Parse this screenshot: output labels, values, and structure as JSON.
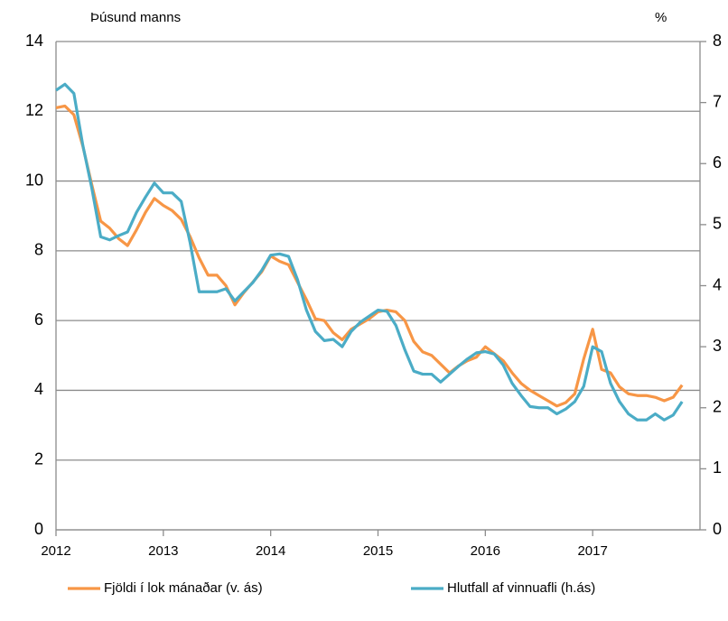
{
  "chart_data": {
    "type": "line",
    "y_label": "Þúsund manns",
    "y2_label": "%",
    "categories": [
      "2012",
      null,
      null,
      null,
      null,
      null,
      null,
      null,
      null,
      null,
      null,
      null,
      "2013",
      null,
      null,
      null,
      null,
      null,
      null,
      null,
      null,
      null,
      null,
      null,
      "2014",
      null,
      null,
      null,
      null,
      null,
      null,
      null,
      null,
      null,
      null,
      null,
      "2015",
      null,
      null,
      null,
      null,
      null,
      null,
      null,
      null,
      null,
      null,
      null,
      "2016",
      null,
      null,
      null,
      null,
      null,
      null,
      null,
      null,
      null,
      null,
      null,
      "2017",
      null,
      null,
      null,
      null,
      null,
      null,
      null,
      null,
      null,
      null
    ],
    "series": [
      {
        "name": "Fjöldi í lok mánaðar (v. ás)",
        "color": "#f79646",
        "axis": "y",
        "values": [
          12.1,
          12.15,
          11.9,
          11.0,
          9.9,
          8.85,
          8.65,
          8.35,
          8.15,
          8.6,
          9.1,
          9.5,
          9.3,
          9.15,
          8.9,
          8.4,
          7.8,
          7.3,
          7.3,
          7.0,
          6.45,
          6.8,
          7.1,
          7.4,
          7.85,
          7.7,
          7.6,
          7.1,
          6.6,
          6.05,
          6.0,
          5.65,
          5.45,
          5.75,
          5.9,
          6.05,
          6.25,
          6.3,
          6.25,
          6.0,
          5.4,
          5.1,
          5.0,
          4.75,
          4.5,
          4.7,
          4.85,
          4.95,
          5.25,
          5.05,
          4.85,
          4.5,
          4.2,
          4.0,
          3.85,
          3.7,
          3.55,
          3.65,
          3.9,
          4.9,
          5.75,
          4.6,
          4.5,
          4.1,
          3.9,
          3.85,
          3.85,
          3.8,
          3.7,
          3.8,
          4.15
        ]
      },
      {
        "name": "Hlutfall af vinnuafli (h.ás)",
        "color": "#4bacc6",
        "axis": "y2",
        "values": [
          7.2,
          7.3,
          7.15,
          6.3,
          5.6,
          4.8,
          4.75,
          4.82,
          4.88,
          5.2,
          5.45,
          5.68,
          5.52,
          5.52,
          5.38,
          4.7,
          3.9,
          3.9,
          3.9,
          3.95,
          3.75,
          3.9,
          4.05,
          4.25,
          4.5,
          4.52,
          4.48,
          4.1,
          3.6,
          3.25,
          3.1,
          3.12,
          3.0,
          3.25,
          3.4,
          3.5,
          3.6,
          3.58,
          3.35,
          2.95,
          2.6,
          2.55,
          2.55,
          2.42,
          2.55,
          2.68,
          2.8,
          2.9,
          2.92,
          2.88,
          2.7,
          2.4,
          2.2,
          2.02,
          2.0,
          2.0,
          1.9,
          1.98,
          2.1,
          2.35,
          3.0,
          2.92,
          2.4,
          2.1,
          1.9,
          1.8,
          1.8,
          1.9,
          1.8,
          1.88,
          2.1
        ]
      }
    ],
    "ylim": [
      0,
      14
    ],
    "yticks": [
      0,
      2,
      4,
      6,
      8,
      10,
      12,
      14
    ],
    "y2lim": [
      0,
      8
    ],
    "y2ticks": [
      0,
      1,
      2,
      3,
      4,
      5,
      6,
      7,
      8
    ],
    "grid": true,
    "legend": "bottom"
  }
}
